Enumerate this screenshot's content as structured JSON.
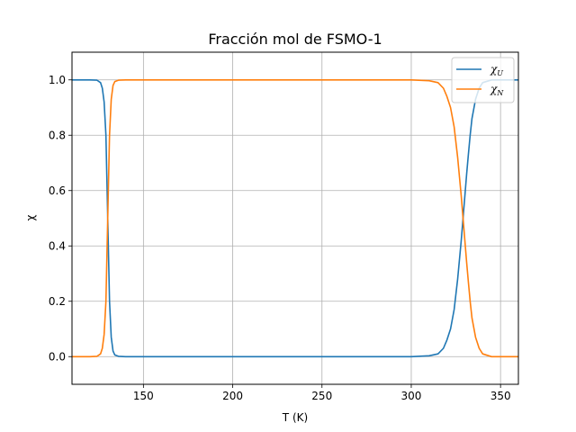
{
  "chart_data": {
    "type": "line",
    "title": "Fracción mol de FSMO-1",
    "xlabel": "T (K)",
    "ylabel": "χ",
    "xlim": [
      110,
      360
    ],
    "ylim": [
      -0.1,
      1.1
    ],
    "xticks": [
      150,
      200,
      250,
      300,
      350
    ],
    "yticks": [
      0.0,
      0.2,
      0.4,
      0.6,
      0.8,
      1.0
    ],
    "xtick_labels": [
      "150",
      "200",
      "250",
      "300",
      "350"
    ],
    "ytick_labels": [
      "0.0",
      "0.2",
      "0.4",
      "0.6",
      "0.8",
      "1.0"
    ],
    "grid": true,
    "legend_position": "top-right",
    "x": [
      110,
      115,
      120,
      124,
      126,
      127,
      128,
      129,
      129.5,
      130,
      130.5,
      131,
      132,
      133,
      134,
      136,
      140,
      150,
      200,
      250,
      300,
      310,
      315,
      318,
      320,
      322,
      324,
      326,
      327,
      328,
      329,
      330,
      331,
      332,
      333,
      334,
      336,
      338,
      340,
      345,
      350,
      355,
      360
    ],
    "series": [
      {
        "name": "χU",
        "symbol": "χ",
        "subscript": "U",
        "color": "#1f77b4",
        "values": [
          1.0,
          1.0,
          1.0,
          0.999,
          0.99,
          0.97,
          0.92,
          0.8,
          0.65,
          0.5,
          0.35,
          0.2,
          0.07,
          0.02,
          0.006,
          0.001,
          0.0,
          0.0,
          0.0,
          0.0,
          0.0,
          0.003,
          0.01,
          0.03,
          0.06,
          0.1,
          0.17,
          0.28,
          0.35,
          0.42,
          0.5,
          0.58,
          0.66,
          0.73,
          0.8,
          0.86,
          0.93,
          0.97,
          0.99,
          1.0,
          1.0,
          1.0,
          1.0
        ]
      },
      {
        "name": "χN",
        "symbol": "χ",
        "subscript": "N",
        "color": "#ff7f0e",
        "values": [
          0.0,
          0.0,
          0.0,
          0.001,
          0.01,
          0.03,
          0.08,
          0.2,
          0.35,
          0.5,
          0.65,
          0.8,
          0.93,
          0.98,
          0.994,
          0.999,
          1.0,
          1.0,
          1.0,
          1.0,
          1.0,
          0.997,
          0.99,
          0.97,
          0.94,
          0.9,
          0.83,
          0.72,
          0.65,
          0.58,
          0.5,
          0.42,
          0.34,
          0.27,
          0.2,
          0.14,
          0.07,
          0.03,
          0.01,
          0.0,
          0.0,
          0.0,
          0.0
        ]
      }
    ]
  }
}
